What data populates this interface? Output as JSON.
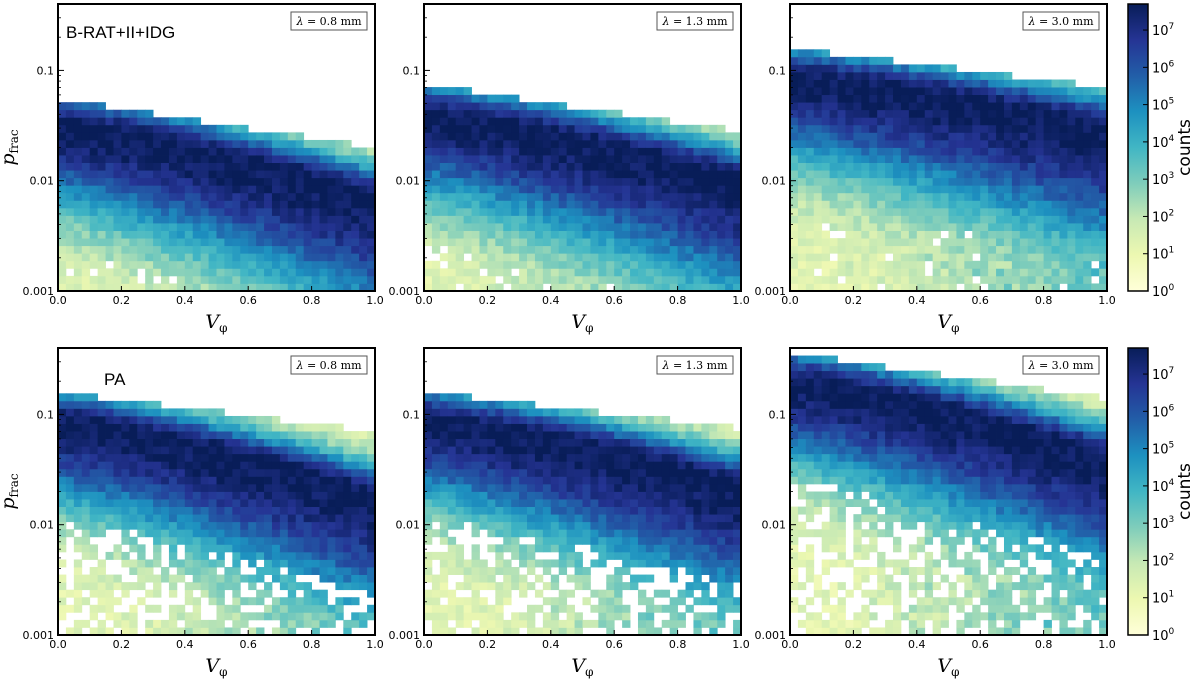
{
  "chart_data": [
    {
      "type": "heatmap",
      "row": 0,
      "col": 0,
      "panel_label": "B-RAT+II+IDG",
      "wavelength_label": "λ = 0.8 mm",
      "xlabel": "V_φ",
      "ylabel": "p_frac",
      "xlim": [
        0,
        1
      ],
      "ylim": [
        0.001,
        0.4
      ],
      "yscale": "log",
      "xticks": [
        "0.0",
        "0.2",
        "0.4",
        "0.6",
        "0.8",
        "1.0"
      ],
      "yticks": [
        "0.001",
        "0.01",
        "0.1"
      ],
      "ridge_pfrac_at_V0": 0.032,
      "ridge_pfrac_at_V1": 0.007,
      "max_pfrac_at_V0": 0.055,
      "max_pfrac_at_V1": 0.02
    },
    {
      "type": "heatmap",
      "row": 0,
      "col": 1,
      "panel_label": "",
      "wavelength_label": "λ = 1.3 mm",
      "xlabel": "V_φ",
      "ylabel": "",
      "xlim": [
        0,
        1
      ],
      "ylim": [
        0.001,
        0.4
      ],
      "yscale": "log",
      "xticks": [
        "0.0",
        "0.2",
        "0.4",
        "0.6",
        "0.8",
        "1.0"
      ],
      "yticks": [
        "0.001",
        "0.01",
        "0.1"
      ],
      "ridge_pfrac_at_V0": 0.04,
      "ridge_pfrac_at_V1": 0.01,
      "max_pfrac_at_V0": 0.075,
      "max_pfrac_at_V1": 0.028
    },
    {
      "type": "heatmap",
      "row": 0,
      "col": 2,
      "panel_label": "",
      "wavelength_label": "λ = 3.0 mm",
      "xlabel": "V_φ",
      "ylabel": "",
      "xlim": [
        0,
        1
      ],
      "ylim": [
        0.001,
        0.4
      ],
      "yscale": "log",
      "xticks": [
        "0.0",
        "0.2",
        "0.4",
        "0.6",
        "0.8",
        "1.0"
      ],
      "yticks": [
        "0.001",
        "0.01",
        "0.1"
      ],
      "ridge_pfrac_at_V0": 0.085,
      "ridge_pfrac_at_V1": 0.03,
      "max_pfrac_at_V0": 0.16,
      "max_pfrac_at_V1": 0.07
    },
    {
      "type": "heatmap",
      "row": 1,
      "col": 0,
      "panel_label": "PA",
      "wavelength_label": "λ = 0.8 mm",
      "xlabel": "V_φ",
      "ylabel": "p_frac",
      "xlim": [
        0,
        1
      ],
      "ylim": [
        0.001,
        0.4
      ],
      "yscale": "log",
      "xticks": [
        "0.0",
        "0.2",
        "0.4",
        "0.6",
        "0.8",
        "1.0"
      ],
      "yticks": [
        "0.001",
        "0.01",
        "0.1"
      ],
      "ridge_pfrac_at_V0": 0.085,
      "ridge_pfrac_at_V1": 0.018,
      "max_pfrac_at_V0": 0.16,
      "max_pfrac_at_V1": 0.07
    },
    {
      "type": "heatmap",
      "row": 1,
      "col": 1,
      "panel_label": "",
      "wavelength_label": "λ = 1.3 mm",
      "xlabel": "V_φ",
      "ylabel": "",
      "xlim": [
        0,
        1
      ],
      "ylim": [
        0.001,
        0.4
      ],
      "yscale": "log",
      "xticks": [
        "0.0",
        "0.2",
        "0.4",
        "0.6",
        "0.8",
        "1.0"
      ],
      "yticks": [
        "0.001",
        "0.01",
        "0.1"
      ],
      "ridge_pfrac_at_V0": 0.09,
      "ridge_pfrac_at_V1": 0.022,
      "max_pfrac_at_V0": 0.16,
      "max_pfrac_at_V1": 0.075
    },
    {
      "type": "heatmap",
      "row": 1,
      "col": 2,
      "panel_label": "",
      "wavelength_label": "λ = 3.0 mm",
      "xlabel": "V_φ",
      "ylabel": "",
      "xlim": [
        0,
        1
      ],
      "ylim": [
        0.001,
        0.4
      ],
      "yscale": "log",
      "xticks": [
        "0.0",
        "0.2",
        "0.4",
        "0.6",
        "0.8",
        "1.0"
      ],
      "yticks": [
        "0.001",
        "0.01",
        "0.1"
      ],
      "ridge_pfrac_at_V0": 0.2,
      "ridge_pfrac_at_V1": 0.04,
      "max_pfrac_at_V0": 0.36,
      "max_pfrac_at_V1": 0.14
    }
  ],
  "colorbars": [
    {
      "row": 0,
      "label": "counts",
      "scale": "log",
      "range": [
        1,
        50000000
      ],
      "ticks": [
        {
          "base": "10",
          "exp": "0"
        },
        {
          "base": "10",
          "exp": "1"
        },
        {
          "base": "10",
          "exp": "2"
        },
        {
          "base": "10",
          "exp": "3"
        },
        {
          "base": "10",
          "exp": "4"
        },
        {
          "base": "10",
          "exp": "5"
        },
        {
          "base": "10",
          "exp": "6"
        },
        {
          "base": "10",
          "exp": "7"
        }
      ]
    },
    {
      "row": 1,
      "label": "counts",
      "scale": "log",
      "range": [
        1,
        50000000
      ],
      "ticks": [
        {
          "base": "10",
          "exp": "0"
        },
        {
          "base": "10",
          "exp": "1"
        },
        {
          "base": "10",
          "exp": "2"
        },
        {
          "base": "10",
          "exp": "3"
        },
        {
          "base": "10",
          "exp": "4"
        },
        {
          "base": "10",
          "exp": "5"
        },
        {
          "base": "10",
          "exp": "6"
        },
        {
          "base": "10",
          "exp": "7"
        }
      ]
    }
  ],
  "colormap": [
    "#ffffd9",
    "#edf8b1",
    "#c7e9b4",
    "#7fcdbb",
    "#41b6c4",
    "#1d91c0",
    "#225ea8",
    "#253494",
    "#081d58"
  ]
}
